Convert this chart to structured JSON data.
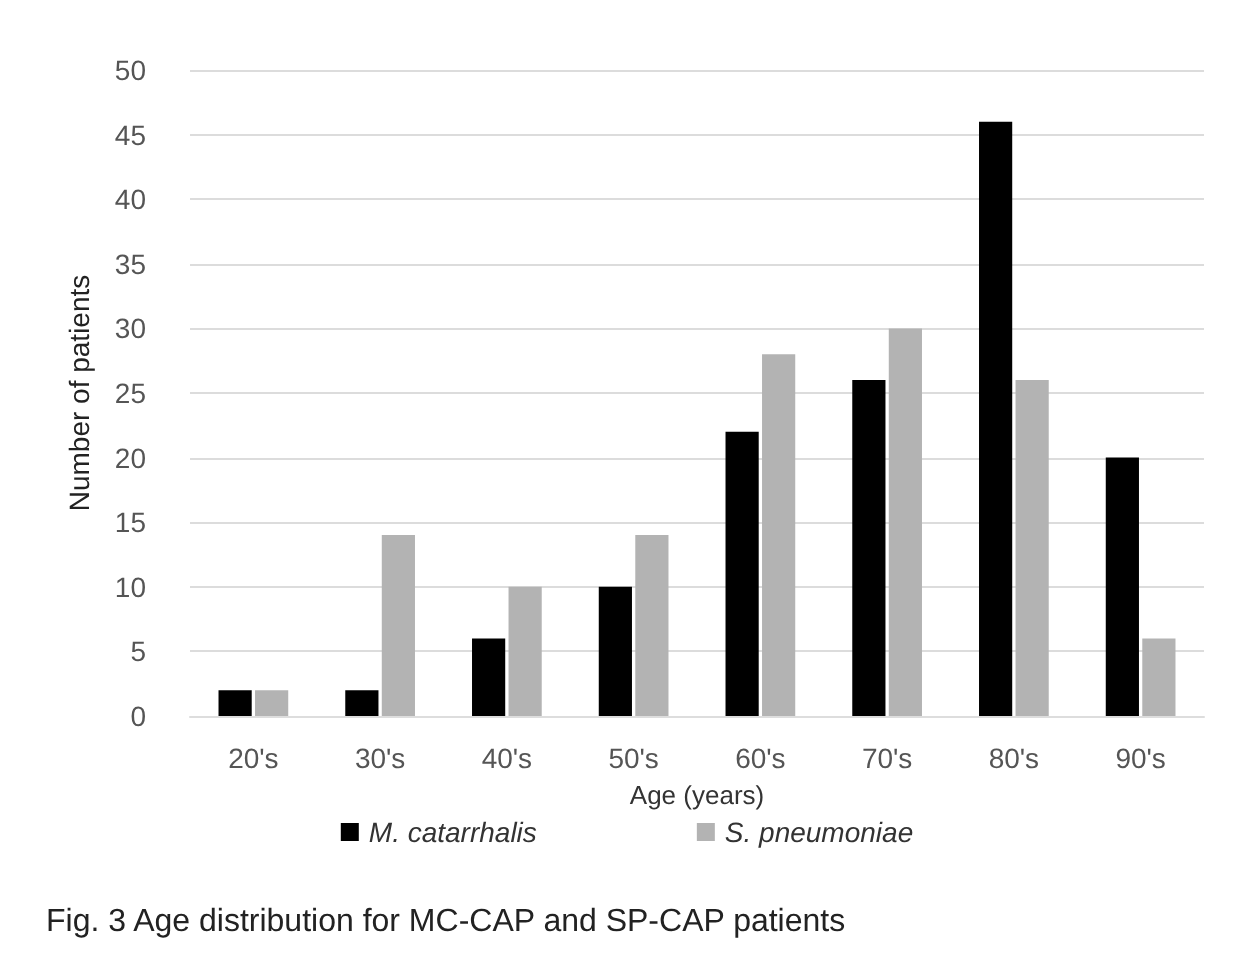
{
  "chart_data": {
    "type": "bar",
    "title": "Fig. 3 Age distribution for MC-CAP and SP-CAP patients",
    "xlabel": "Age (years)",
    "ylabel": "Number of patients",
    "categories": [
      "20's",
      "30's",
      "40's",
      "50's",
      "60's",
      "70's",
      "80's",
      "90's"
    ],
    "series": [
      {
        "name": "M. catarrhalis",
        "color": "#000000",
        "values": [
          2,
          2,
          6,
          10,
          22,
          26,
          46,
          20
        ]
      },
      {
        "name": "S. pneumoniae",
        "color": "#b3b3b3",
        "values": [
          2,
          14,
          10,
          14,
          28,
          30,
          26,
          6
        ]
      }
    ],
    "ylim": [
      0,
      50
    ],
    "yticks": [
      0,
      5,
      10,
      15,
      20,
      25,
      30,
      35,
      40,
      45,
      50
    ],
    "grid": "y",
    "legend": "bottom"
  }
}
